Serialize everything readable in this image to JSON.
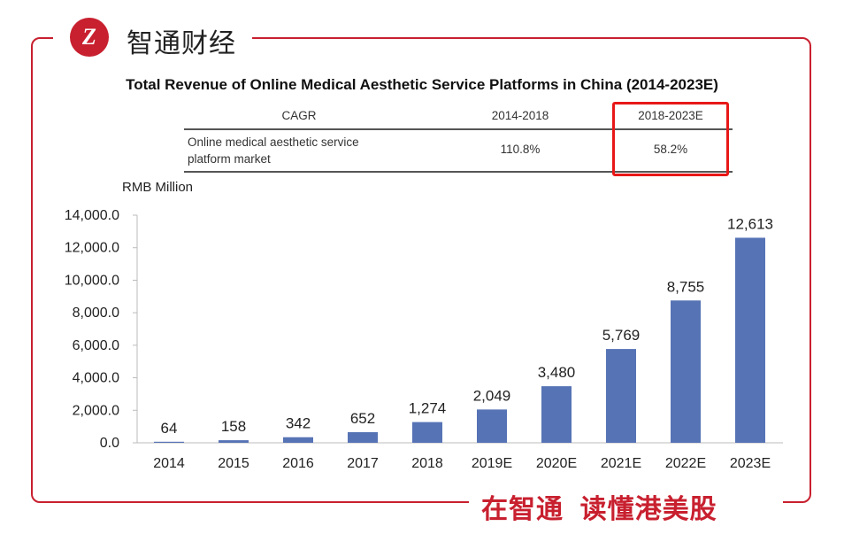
{
  "brand": {
    "name": "智通财经",
    "logo_text": "Z",
    "slogan": "在智通  读懂港美股",
    "accent": "#c8202f"
  },
  "table": {
    "header": [
      "CAGR",
      "2014-2018",
      "2018-2023E"
    ],
    "row": [
      "Online medical aesthetic service platform market",
      "110.8%",
      "58.2%"
    ],
    "highlight": "2018-2023E",
    "highlight_color": "#e81818"
  },
  "chart_data": {
    "type": "bar",
    "title": "Total Revenue of Online Medical Aesthetic Service Platforms in China (2014-2023E)",
    "ylabel": "RMB Million",
    "xlabel": "",
    "categories": [
      "2014",
      "2015",
      "2016",
      "2017",
      "2018",
      "2019E",
      "2020E",
      "2021E",
      "2022E",
      "2023E"
    ],
    "values": [
      64,
      158,
      342,
      652,
      1274,
      2049,
      3480,
      5769,
      8755,
      12613
    ],
    "data_labels": [
      "64",
      "158",
      "342",
      "652",
      "1,274",
      "2,049",
      "3,480",
      "5,769",
      "8,755",
      "12,613"
    ],
    "yticks": [
      "0.0",
      "2,000.0",
      "4,000.0",
      "6,000.0",
      "8,000.0",
      "10,000.0",
      "12,000.0",
      "14,000.0"
    ],
    "ylim": [
      0,
      14000
    ],
    "grid": false,
    "bar_color": "#5673b5"
  }
}
